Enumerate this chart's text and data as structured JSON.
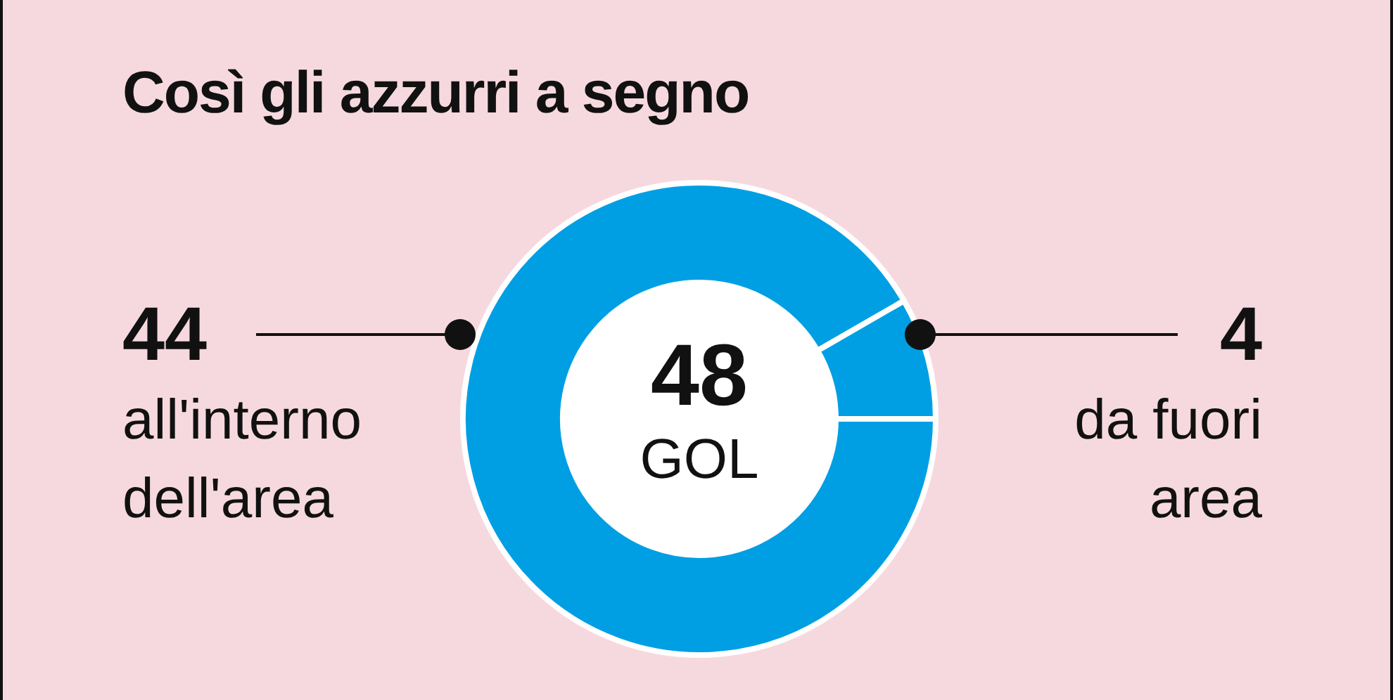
{
  "chart_data": {
    "type": "donut",
    "title": "Così gli azzurri a segno",
    "categories": [
      "all'interno dell'area",
      "da fuori area"
    ],
    "values": [
      44,
      4
    ],
    "colors": [
      "#009fe3",
      "#009fe3"
    ],
    "data_labels": true,
    "annotations": [
      "48",
      "GOL"
    ]
  }
}
